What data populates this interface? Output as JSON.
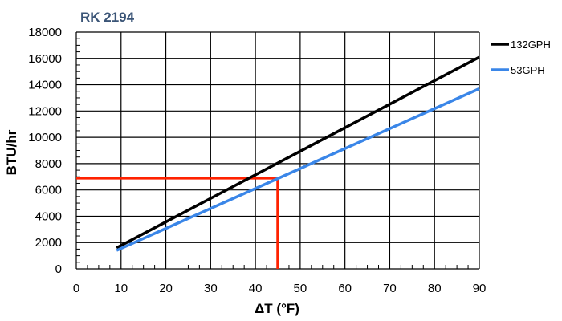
{
  "chart_data": {
    "type": "line",
    "title": "RK 2194",
    "xlabel": "ΔT (°F)",
    "ylabel": "BTU/hr",
    "xlim": [
      0,
      90
    ],
    "ylim": [
      0,
      18000
    ],
    "x_ticks": [
      "0",
      "10",
      "20",
      "30",
      "40",
      "50",
      "60",
      "70",
      "80",
      "90"
    ],
    "y_ticks": [
      "0",
      "2000",
      "4000",
      "6000",
      "8000",
      "10000",
      "12000",
      "14000",
      "16000",
      "18000"
    ],
    "x_tick_values": [
      0,
      10,
      20,
      30,
      40,
      50,
      60,
      70,
      80,
      90
    ],
    "y_tick_values": [
      0,
      2000,
      4000,
      6000,
      8000,
      10000,
      12000,
      14000,
      16000,
      18000
    ],
    "grid": true,
    "legend_position": "top-right, outside plot",
    "series": [
      {
        "name": "132GPH",
        "color": "#000000",
        "x": [
          9,
          90
        ],
        "y": [
          1600,
          16100
        ]
      },
      {
        "name": "53GPH",
        "color": "#3a86e8",
        "x": [
          9,
          90
        ],
        "y": [
          1400,
          13700
        ]
      }
    ],
    "annotation": {
      "color": "#ff2200",
      "x": 45,
      "y": 6900,
      "description": "reference lines from y-axis at 6900 to x = 45 and down to x-axis"
    },
    "title_color": "#3b5577"
  }
}
